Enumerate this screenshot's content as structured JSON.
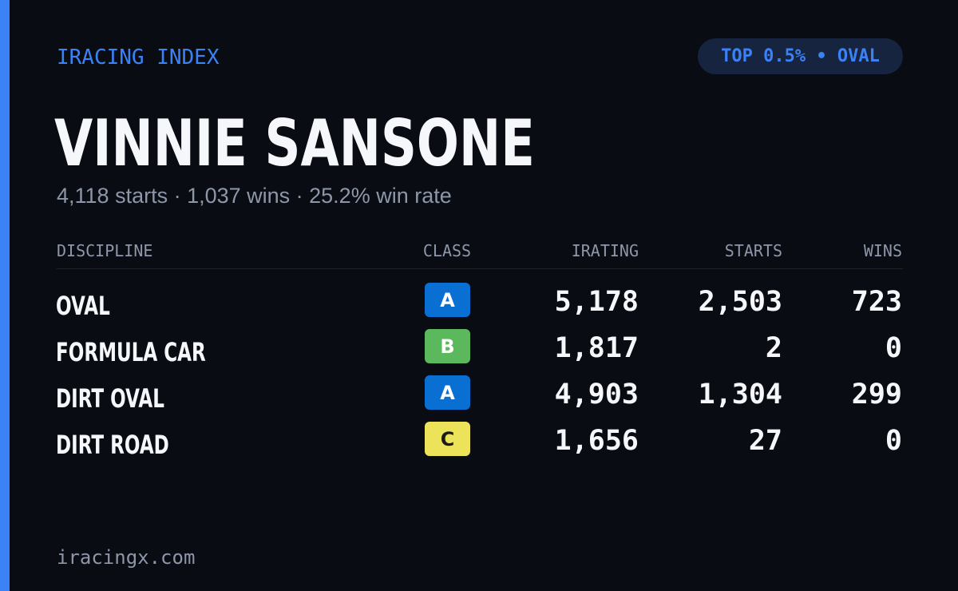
{
  "header": {
    "brand": "IRACING INDEX",
    "badge": "TOP 0.5% • OVAL"
  },
  "driver": {
    "name": "VINNIE SANSONE",
    "summary": "4,118 starts · 1,037 wins · 25.2% win rate"
  },
  "table": {
    "columns": {
      "discipline": "DISCIPLINE",
      "class": "CLASS",
      "irating": "IRATING",
      "starts": "STARTS",
      "wins": "WINS"
    },
    "rows": [
      {
        "discipline": "OVAL",
        "class": "A",
        "class_color": "#0a6fd3",
        "class_text_color": "#ffffff",
        "irating": "5,178",
        "starts": "2,503",
        "wins": "723"
      },
      {
        "discipline": "FORMULA CAR",
        "class": "B",
        "class_color": "#5cb85c",
        "class_text_color": "#ffffff",
        "irating": "1,817",
        "starts": "2",
        "wins": "0"
      },
      {
        "discipline": "DIRT OVAL",
        "class": "A",
        "class_color": "#0a6fd3",
        "class_text_color": "#ffffff",
        "irating": "4,903",
        "starts": "1,304",
        "wins": "299"
      },
      {
        "discipline": "DIRT ROAD",
        "class": "C",
        "class_color": "#ece35a",
        "class_text_color": "#1a1a1a",
        "irating": "1,656",
        "starts": "27",
        "wins": "0"
      }
    ]
  },
  "footer": {
    "site": "iracingx.com"
  },
  "colors": {
    "accent": "#3b82f6",
    "background": "#090c13",
    "muted": "#8e97a9",
    "text": "#f5f7fb"
  }
}
